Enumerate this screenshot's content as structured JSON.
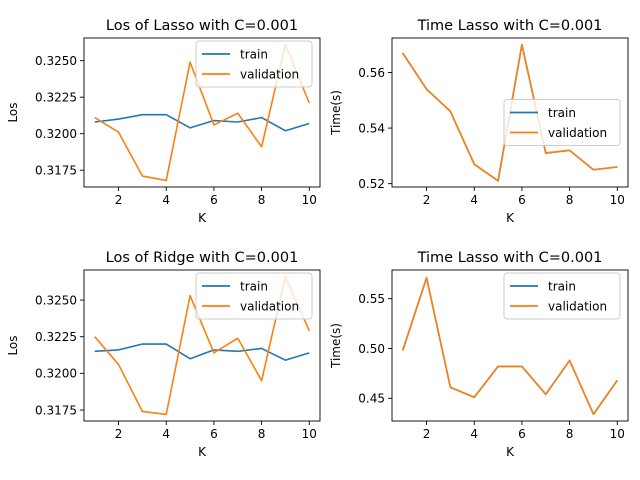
{
  "chart_data": [
    {
      "type": "line",
      "title": "Los of Lasso with C=0.001",
      "xlabel": "K",
      "ylabel": "Los",
      "x": [
        1,
        2,
        3,
        4,
        5,
        6,
        7,
        8,
        9,
        10
      ],
      "xticks": [
        2,
        4,
        6,
        8,
        10
      ],
      "yticks": [
        0.3175,
        0.32,
        0.3225,
        0.325
      ],
      "ylim": [
        0.31635,
        0.32655
      ],
      "legend": "top-right",
      "series": [
        {
          "name": "train",
          "color": "#1f77b4",
          "values": [
            0.3208,
            0.321,
            0.3213,
            0.3213,
            0.3204,
            0.3209,
            0.3208,
            0.3211,
            0.3202,
            0.3207
          ]
        },
        {
          "name": "validation",
          "color": "#ff7f0e",
          "values": [
            0.3211,
            0.3201,
            0.3171,
            0.3168,
            0.3249,
            0.3206,
            0.3214,
            0.3191,
            0.3261,
            0.3221
          ]
        }
      ]
    },
    {
      "type": "line",
      "title": "Time Lasso with C=0.001",
      "xlabel": "K",
      "ylabel": "Time(s)",
      "x": [
        1,
        2,
        3,
        4,
        5,
        6,
        7,
        8,
        9,
        10
      ],
      "xticks": [
        2,
        4,
        6,
        8,
        10
      ],
      "yticks": [
        0.52,
        0.54,
        0.56
      ],
      "ylim": [
        0.5188,
        0.5724
      ],
      "legend": "center-right",
      "series": [
        {
          "name": "train",
          "color": "#1f77b4",
          "values": [
            0.567,
            0.554,
            0.546,
            0.527,
            0.521,
            0.57,
            0.531,
            0.532,
            0.525,
            0.526
          ]
        },
        {
          "name": "validation",
          "color": "#ff7f0e",
          "values": [
            0.567,
            0.554,
            0.546,
            0.527,
            0.521,
            0.57,
            0.531,
            0.532,
            0.525,
            0.526
          ]
        }
      ]
    },
    {
      "type": "line",
      "title": "Los of Ridge with C=0.001",
      "xlabel": "K",
      "ylabel": "Los",
      "x": [
        1,
        2,
        3,
        4,
        5,
        6,
        7,
        8,
        9,
        10
      ],
      "xticks": [
        2,
        4,
        6,
        8,
        10
      ],
      "yticks": [
        0.3175,
        0.32,
        0.3225,
        0.325
      ],
      "ylim": [
        0.31675,
        0.32705
      ],
      "legend": "top-right",
      "series": [
        {
          "name": "train",
          "color": "#1f77b4",
          "values": [
            0.3215,
            0.3216,
            0.322,
            0.322,
            0.321,
            0.3216,
            0.3215,
            0.3217,
            0.3209,
            0.3214
          ]
        },
        {
          "name": "validation",
          "color": "#ff7f0e",
          "values": [
            0.3225,
            0.3206,
            0.3174,
            0.3172,
            0.3253,
            0.3214,
            0.3224,
            0.3195,
            0.3266,
            0.3229
          ]
        }
      ]
    },
    {
      "type": "line",
      "title": "Time Lasso with C=0.001",
      "xlabel": "K",
      "ylabel": "Time(s)",
      "x": [
        1,
        2,
        3,
        4,
        5,
        6,
        7,
        8,
        9,
        10
      ],
      "xticks": [
        2,
        4,
        6,
        8,
        10
      ],
      "yticks": [
        0.45,
        0.5,
        0.55
      ],
      "ylim": [
        0.4272,
        0.5788
      ],
      "legend": "top-right",
      "series": [
        {
          "name": "train",
          "color": "#1f77b4",
          "values": [
            0.498,
            0.571,
            0.461,
            0.451,
            0.482,
            0.482,
            0.454,
            0.488,
            0.434,
            0.468
          ]
        },
        {
          "name": "validation",
          "color": "#ff7f0e",
          "values": [
            0.498,
            0.571,
            0.461,
            0.451,
            0.482,
            0.482,
            0.454,
            0.488,
            0.434,
            0.468
          ]
        }
      ]
    }
  ]
}
